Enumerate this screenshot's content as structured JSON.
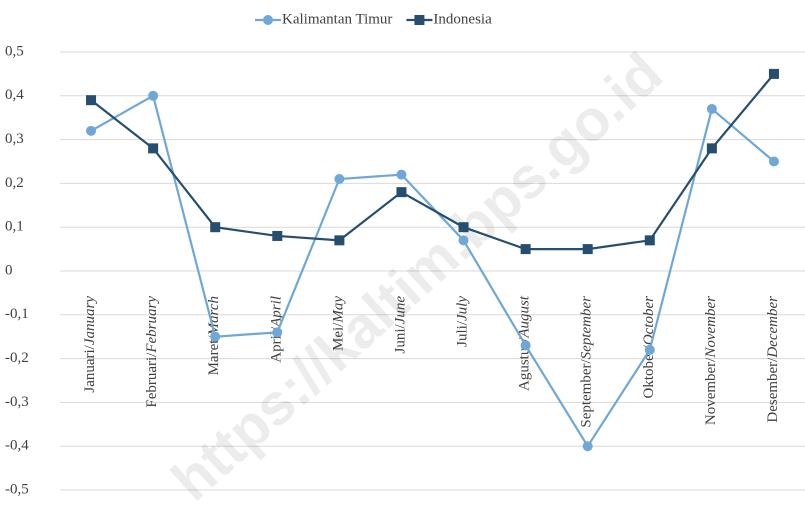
{
  "chart_data": {
    "type": "line",
    "categories": [
      "Januari/January",
      "Februari/February",
      "Maret/March",
      "April/April",
      "Mei/May",
      "Juni/June",
      "Juli/July",
      "Agustus/August",
      "September/September",
      "Oktober/October",
      "November/November",
      "Desember/December"
    ],
    "series": [
      {
        "name": "Kalimantan Timur",
        "color": "#6fa8d6",
        "marker": "circle",
        "values": [
          0.32,
          0.4,
          -0.15,
          -0.14,
          0.21,
          0.22,
          0.07,
          -0.17,
          -0.4,
          -0.18,
          0.37,
          0.25
        ]
      },
      {
        "name": "Indonesia",
        "color": "#264e6e",
        "marker": "square",
        "values": [
          0.39,
          0.28,
          0.1,
          0.08,
          0.07,
          0.18,
          0.1,
          0.05,
          0.05,
          0.07,
          0.28,
          0.45
        ]
      }
    ],
    "ylim": [
      -0.5,
      0.5
    ],
    "yticks": [
      {
        "value": 0.5,
        "label": "0,5"
      },
      {
        "value": 0.4,
        "label": "0,4"
      },
      {
        "value": 0.3,
        "label": "0,3"
      },
      {
        "value": 0.2,
        "label": "0,2"
      },
      {
        "value": 0.1,
        "label": "0,1"
      },
      0,
      {
        "value": -0.1,
        "label": "-0,1"
      },
      {
        "value": -0.2,
        "label": "-0,2"
      },
      {
        "value": -0.3,
        "label": "-0,3"
      },
      {
        "value": -0.4,
        "label": "-0,4"
      },
      {
        "value": -0.5,
        "label": "-0,5"
      }
    ],
    "grid": true,
    "legend": "top",
    "watermark": "https://kaltim.bps.go.id"
  }
}
